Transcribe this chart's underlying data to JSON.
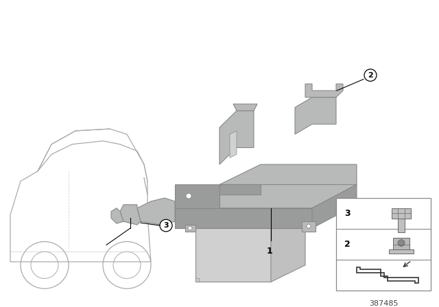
{
  "bg_color": "#ffffff",
  "diagram_number": "387485",
  "part_color": "#b8baba",
  "part_color_dark": "#9a9c9c",
  "part_color_light": "#d0d2d2",
  "battery_color": "#d4d4d4",
  "battery_edge": "#aaaaaa",
  "car_color": "#d8d8d8",
  "car_edge": "#aaaaaa",
  "leader_color": "#000000",
  "legend_border": "#888888",
  "legend_bg": "#ffffff"
}
